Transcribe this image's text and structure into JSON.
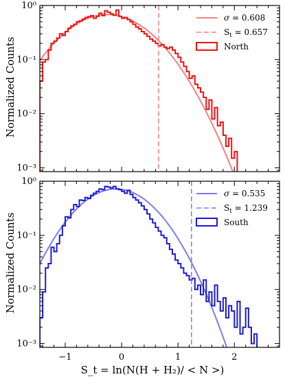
{
  "figure": {
    "xlabel": "S_t = ln(N(H + H₂)/ < N >)",
    "ylabel": "Normalized Counts"
  },
  "chart_data": [
    {
      "type": "line",
      "panel": "top",
      "yscale": "log",
      "xlim": [
        -1.45,
        2.8
      ],
      "ylim": [
        0.00085,
        1.0
      ],
      "ylabel": "Normalized Counts",
      "xlabel": "",
      "grid": false,
      "legend_position": "top-right",
      "y_tick_labels": [
        "10⁰",
        "10⁻¹",
        "10⁻²",
        "10⁻³"
      ],
      "x_tick_labels": [],
      "colors": {
        "hist": "#ee1111",
        "fit": "#f08080"
      },
      "fit": {
        "sigma": 0.608,
        "mu": -0.25,
        "peak": 0.68,
        "label_value": "0.608"
      },
      "threshold": {
        "s_t": 0.657,
        "label_value": "0.657"
      },
      "legend": {
        "hist_label": "North"
      },
      "histogram": {
        "x": [
          -1.45,
          -1.4,
          -1.35,
          -1.3,
          -1.25,
          -1.2,
          -1.15,
          -1.1,
          -1.05,
          -1.0,
          -0.95,
          -0.9,
          -0.85,
          -0.8,
          -0.75,
          -0.7,
          -0.65,
          -0.6,
          -0.55,
          -0.5,
          -0.45,
          -0.4,
          -0.35,
          -0.3,
          -0.25,
          -0.2,
          -0.15,
          -0.1,
          -0.05,
          0.0,
          0.05,
          0.1,
          0.15,
          0.2,
          0.25,
          0.3,
          0.35,
          0.4,
          0.45,
          0.5,
          0.55,
          0.6,
          0.65,
          0.7,
          0.75,
          0.8,
          0.85,
          0.9,
          0.95,
          1.0,
          1.05,
          1.1,
          1.15,
          1.2,
          1.25,
          1.3,
          1.35,
          1.4,
          1.45,
          1.5,
          1.55,
          1.6,
          1.65,
          1.7,
          1.75,
          1.8,
          1.85,
          1.9,
          1.95,
          2.0
        ],
        "y": [
          0.04,
          0.09,
          0.1,
          0.15,
          0.2,
          0.22,
          0.25,
          0.3,
          0.28,
          0.33,
          0.38,
          0.42,
          0.45,
          0.5,
          0.52,
          0.56,
          0.6,
          0.62,
          0.65,
          0.58,
          0.63,
          0.72,
          0.65,
          0.8,
          0.75,
          0.7,
          0.66,
          0.82,
          0.63,
          0.58,
          0.6,
          0.55,
          0.5,
          0.45,
          0.4,
          0.37,
          0.33,
          0.3,
          0.27,
          0.24,
          0.22,
          0.2,
          0.18,
          0.19,
          0.17,
          0.16,
          0.17,
          0.15,
          0.13,
          0.11,
          0.09,
          0.075,
          0.06,
          0.045,
          0.05,
          0.035,
          0.03,
          0.025,
          0.02,
          0.012,
          0.018,
          0.008,
          0.013,
          0.006,
          0.007,
          0.004,
          0.0025,
          0.0035,
          0.0015,
          0.002
        ]
      }
    },
    {
      "type": "line",
      "panel": "bottom",
      "yscale": "log",
      "xlim": [
        -1.45,
        2.8
      ],
      "ylim": [
        0.00085,
        1.0
      ],
      "ylabel": "Normalized Counts",
      "xlabel": "S_t = ln(N(H + H₂)/ < N >)",
      "grid": false,
      "legend_position": "top-right",
      "y_tick_labels": [
        "10⁰",
        "10⁻¹",
        "10⁻²",
        "10⁻³"
      ],
      "x_tick_labels": [
        "−1",
        "0",
        "1",
        "2"
      ],
      "colors": {
        "hist": "#1a1ad6",
        "fit": "#7b7bf0"
      },
      "fit": {
        "sigma": 0.535,
        "mu": -0.1,
        "peak": 0.72,
        "label_value": "0.535"
      },
      "threshold": {
        "s_t": 1.239,
        "label_value": "1.239"
      },
      "legend": {
        "hist_label": "South"
      },
      "histogram": {
        "x": [
          -1.45,
          -1.4,
          -1.35,
          -1.3,
          -1.25,
          -1.2,
          -1.15,
          -1.1,
          -1.05,
          -1.0,
          -0.95,
          -0.9,
          -0.85,
          -0.8,
          -0.75,
          -0.7,
          -0.65,
          -0.6,
          -0.55,
          -0.5,
          -0.45,
          -0.4,
          -0.35,
          -0.3,
          -0.25,
          -0.2,
          -0.15,
          -0.1,
          -0.05,
          0.0,
          0.05,
          0.1,
          0.15,
          0.2,
          0.25,
          0.3,
          0.35,
          0.4,
          0.45,
          0.5,
          0.55,
          0.6,
          0.65,
          0.7,
          0.75,
          0.8,
          0.85,
          0.9,
          0.95,
          1.0,
          1.05,
          1.1,
          1.15,
          1.2,
          1.25,
          1.3,
          1.35,
          1.4,
          1.45,
          1.5,
          1.55,
          1.6,
          1.65,
          1.7,
          1.75,
          1.8,
          1.85,
          1.9,
          1.95,
          2.0,
          2.05,
          2.1,
          2.15,
          2.2,
          2.25,
          2.3,
          2.35
        ],
        "y": [
          0.003,
          0.009,
          0.025,
          0.03,
          0.06,
          0.05,
          0.07,
          0.1,
          0.15,
          0.22,
          0.21,
          0.3,
          0.37,
          0.34,
          0.45,
          0.44,
          0.5,
          0.48,
          0.55,
          0.6,
          0.65,
          0.72,
          0.7,
          0.8,
          0.78,
          0.75,
          0.8,
          0.72,
          0.7,
          0.65,
          0.6,
          0.68,
          0.57,
          0.5,
          0.45,
          0.4,
          0.35,
          0.3,
          0.25,
          0.2,
          0.17,
          0.14,
          0.12,
          0.1,
          0.09,
          0.07,
          0.055,
          0.045,
          0.035,
          0.03,
          0.025,
          0.02,
          0.018,
          0.015,
          0.016,
          0.01,
          0.012,
          0.008,
          0.015,
          0.006,
          0.009,
          0.005,
          0.012,
          0.006,
          0.004,
          0.007,
          0.003,
          0.005,
          0.004,
          0.002,
          0.006,
          0.0015,
          0.002,
          0.0045,
          0.002,
          0.001,
          0.0015
        ]
      }
    }
  ]
}
